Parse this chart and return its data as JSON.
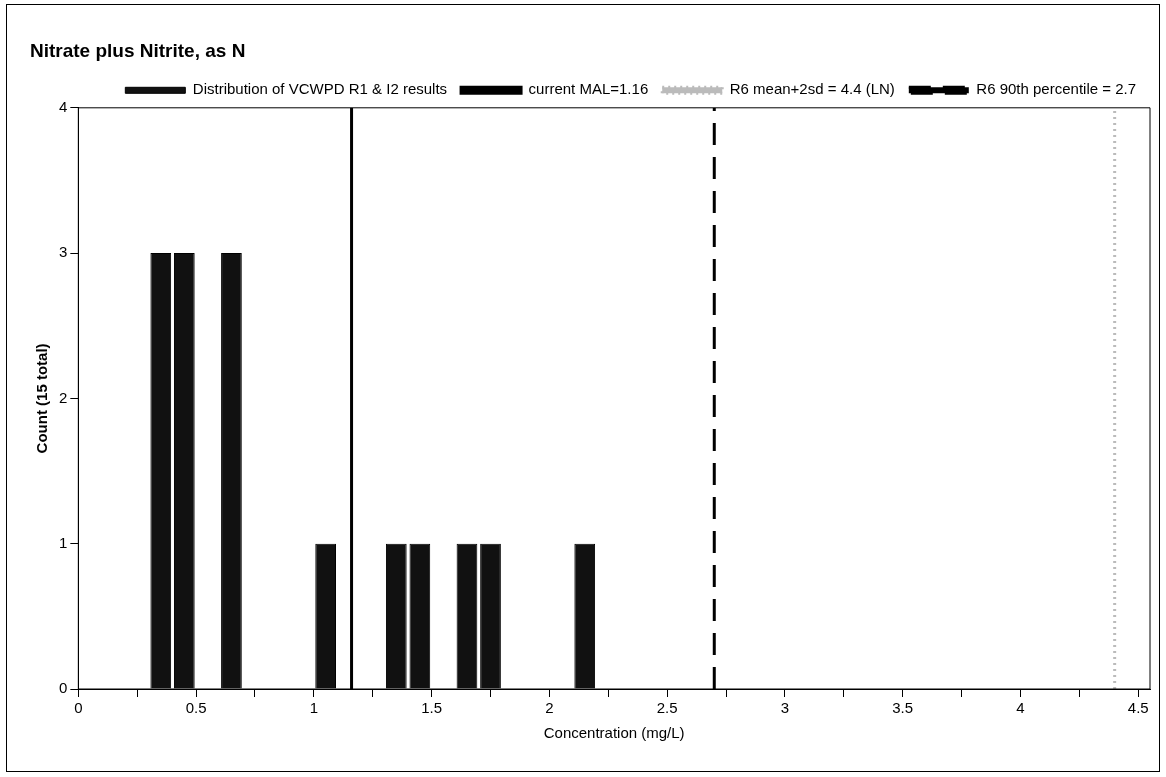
{
  "chart_data": {
    "type": "histogram",
    "title": "Nitrate plus Nitrite, as N",
    "xlabel": "Concentration (mg/L)",
    "ylabel": "Count (15 total)",
    "bins": [
      0.3,
      0.4,
      0.5,
      0.6,
      0.7,
      0.8,
      0.9,
      1.0,
      1.1,
      1.2,
      1.3,
      1.4,
      1.5,
      1.6,
      1.7,
      1.8,
      1.9,
      2.0,
      2.1,
      2.2
    ],
    "series": [
      {
        "name": "Distribution of VCWPD R1 & I2 results",
        "color": "#111111",
        "values": [
          3,
          3,
          0,
          3,
          0,
          0,
          0,
          1,
          0,
          0,
          1,
          1,
          0,
          1,
          1,
          0,
          0,
          0,
          1
        ]
      }
    ],
    "xlim": [
      0,
      4.55
    ],
    "xticks": [
      0,
      {
        "value": 0.25,
        "label": null
      },
      0.5,
      {
        "value": 0.75,
        "label": null
      },
      1,
      {
        "value": 1.25,
        "label": null
      },
      1.5,
      {
        "value": 1.75,
        "label": null
      },
      2,
      {
        "value": 2.25,
        "label": null
      },
      2.5,
      {
        "value": 2.75,
        "label": null
      },
      3,
      {
        "value": 3.25,
        "label": null
      },
      3.5,
      {
        "value": 3.75,
        "label": null
      },
      4,
      {
        "value": 4.25,
        "label": null
      },
      4.5
    ],
    "ylim": [
      0,
      4
    ],
    "yticks": [
      0,
      1,
      2,
      3,
      4
    ],
    "ref_lines": [
      {
        "axis": "x",
        "value": 1.16,
        "label": "current MAL=1.16",
        "color": "#000000",
        "line_style": "solid"
      },
      {
        "axis": "x",
        "value": 4.4,
        "label": "R6 mean+2sd = 4.4 (LN)",
        "color": "#bbbbbb",
        "line_style": "dotted"
      },
      {
        "axis": "x",
        "value": 2.7,
        "label": "R6 90th percentile = 2.7",
        "color": "#000000",
        "line_style": "dashed"
      }
    ],
    "legend": "top right",
    "grid": false
  }
}
